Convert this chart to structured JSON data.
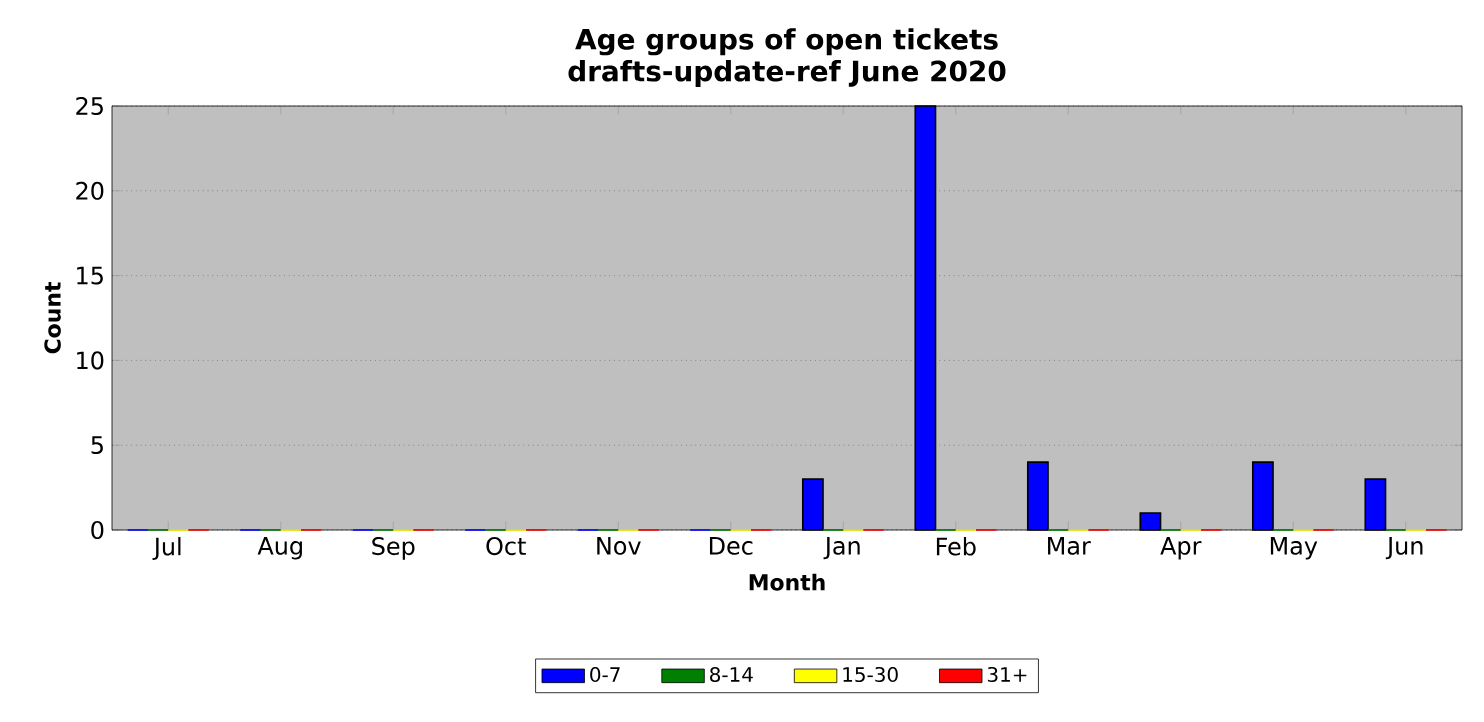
{
  "chart_data": {
    "type": "bar",
    "title": "Age groups of open tickets",
    "subtitle": "drafts-update-ref June 2020",
    "xlabel": "Month",
    "ylabel": "Count",
    "categories": [
      "Jul",
      "Aug",
      "Sep",
      "Oct",
      "Nov",
      "Dec",
      "Jan",
      "Feb",
      "Mar",
      "Apr",
      "May",
      "Jun"
    ],
    "series": [
      {
        "name": "0-7",
        "color": "#0000ff",
        "values": [
          0,
          0,
          0,
          0,
          0,
          0,
          3,
          25,
          4,
          1,
          4,
          3
        ]
      },
      {
        "name": "8-14",
        "color": "#008000",
        "values": [
          0,
          0,
          0,
          0,
          0,
          0,
          0,
          0,
          0,
          0,
          0,
          0
        ]
      },
      {
        "name": "15-30",
        "color": "#ffff00",
        "values": [
          0,
          0,
          0,
          0,
          0,
          0,
          0,
          0,
          0,
          0,
          0,
          0
        ]
      },
      {
        "name": "31+",
        "color": "#ff0000",
        "values": [
          0,
          0,
          0,
          0,
          0,
          0,
          0,
          0,
          0,
          0,
          0,
          0
        ]
      }
    ],
    "ylim": [
      0,
      25
    ],
    "yticks": [
      0,
      5,
      10,
      15,
      20,
      25
    ],
    "grid": "y",
    "legend": "bottom"
  }
}
